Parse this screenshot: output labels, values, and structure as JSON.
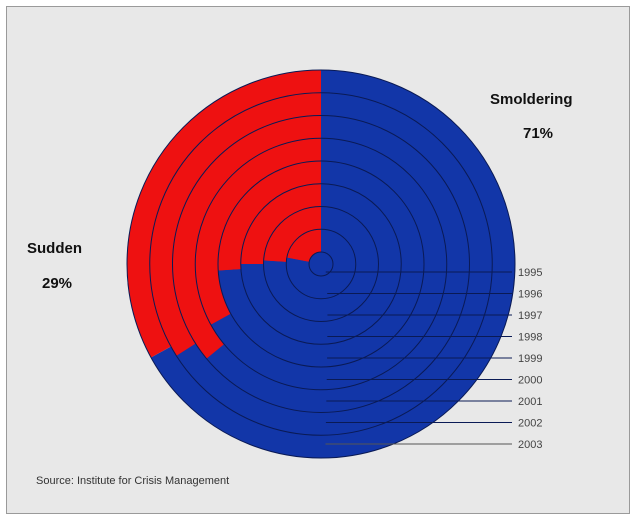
{
  "chart_data": {
    "type": "pie",
    "subtype": "concentric-rings",
    "title": "",
    "series": [
      {
        "name": "Sudden",
        "label": "Sudden",
        "percent_label": "29%",
        "color": "#ee1111"
      },
      {
        "name": "Smoldering",
        "label": "Smoldering",
        "percent_label": "71%",
        "color": "#1236a8"
      }
    ],
    "rings": [
      {
        "year": "1995",
        "sudden_pct": 0
      },
      {
        "year": "1996",
        "sudden_pct": 22
      },
      {
        "year": "1997",
        "sudden_pct": 24
      },
      {
        "year": "1998",
        "sudden_pct": 25
      },
      {
        "year": "1999",
        "sudden_pct": 26
      },
      {
        "year": "2000",
        "sudden_pct": 33
      },
      {
        "year": "2001",
        "sudden_pct": 36
      },
      {
        "year": "2002",
        "sudden_pct": 34
      },
      {
        "year": "2003",
        "sudden_pct": 33
      }
    ],
    "source": "Source: Institute for Crisis Management",
    "ring_line_color": "#0a1a55",
    "leader_line_color": "#555555"
  }
}
